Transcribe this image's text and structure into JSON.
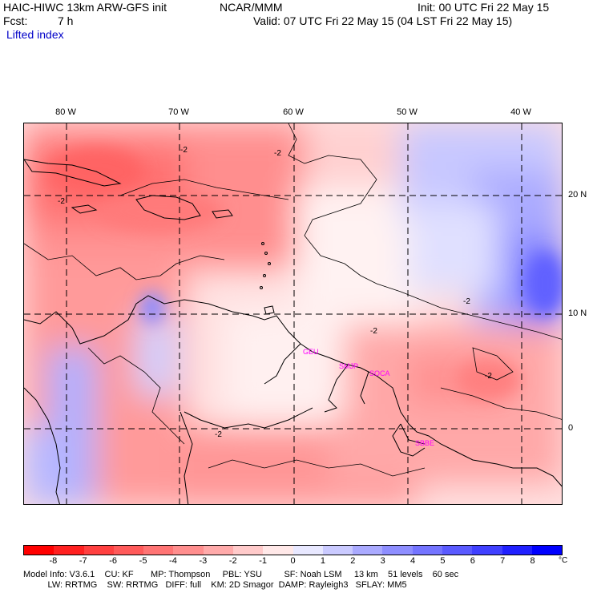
{
  "header": {
    "title": "HAIC-HIWC 13km ARW-GFS init",
    "org": "NCAR/MMM",
    "init": "Init: 00 UTC Fri 22 May 15",
    "fcst_label": "Fcst:",
    "fcst_value": "7 h",
    "valid": "Valid: 07 UTC Fri 22 May 15 (04 LST Fri 22 May 15)",
    "field": "Lifted index"
  },
  "map": {
    "lon_labels": [
      "80 W",
      "70 W",
      "60 W",
      "50 W",
      "40 W"
    ],
    "lat_labels": [
      "20 N",
      "10 N",
      "0"
    ],
    "contour_label": "-2",
    "stations": [
      "GEU",
      "SMJP",
      "SOCA",
      "SBBE"
    ],
    "colors": {
      "coast": "#000000",
      "station": "#ff00ff"
    }
  },
  "colorbar": {
    "ticks": [
      "-8",
      "-7",
      "-6",
      "-5",
      "-4",
      "-3",
      "-2",
      "-1",
      "0",
      "1",
      "2",
      "3",
      "4",
      "5",
      "6",
      "7",
      "8"
    ],
    "unit": "°C",
    "colors": [
      "#ff0000",
      "#ff2020",
      "#ff4040",
      "#ff5a5a",
      "#ff7474",
      "#ff8e8e",
      "#ffaaaa",
      "#ffcaca",
      "#ffe8e8",
      "#e8e8ff",
      "#cacaff",
      "#aaaaff",
      "#8e8eff",
      "#7474ff",
      "#5a5aff",
      "#4040ff",
      "#2020ff",
      "#0000ff"
    ]
  },
  "footer": {
    "line1": "Model Info: V3.6.1    CU: KF       MP: Thompson     PBL: YSU         SF: Noah LSM     13 km    51 levels    60 sec",
    "line2": "          LW: RRTMG    SW: RRTMG   DIFF: full    KM: 2D Smagor  DAMP: Rayleigh3   SFLAY: MM5"
  }
}
